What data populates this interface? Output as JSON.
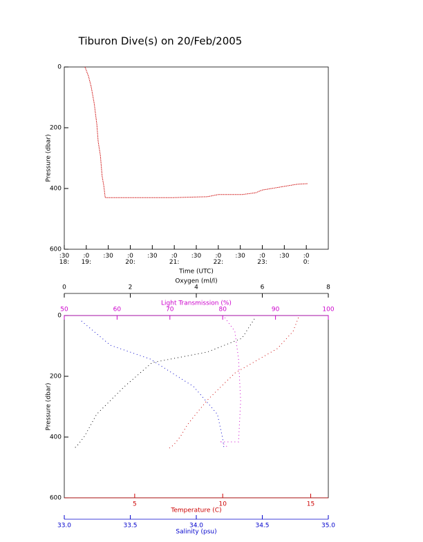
{
  "chart_data": [
    {
      "type": "line",
      "title": "Tiburon Dive(s) on 20/Feb/2005",
      "x_label": "Time (UTC)",
      "y_label": "Pressure (dbar)",
      "x": [
        18.97,
        19.05,
        19.11,
        19.18,
        19.24,
        19.27,
        19.32,
        19.36,
        19.4,
        19.43,
        21.0,
        21.75,
        22.0,
        22.54,
        22.85,
        23.0,
        23.5,
        23.79,
        24.03
      ],
      "series": [
        {
          "color": "#cc0000",
          "values": [
            0,
            30,
            64,
            120,
            189,
            245,
            291,
            359,
            393,
            430,
            430,
            427,
            420,
            420,
            414,
            405,
            393,
            386,
            384
          ]
        }
      ],
      "xlim": [
        18.5,
        24.5
      ],
      "xticks": [
        {
          "value": 18.5,
          "label": ":30\n18:"
        },
        {
          "value": 19,
          "label": ":0\n19:"
        },
        {
          "value": 19.5,
          "label": ":30"
        },
        {
          "value": 20,
          "label": ":0\n20:"
        },
        {
          "value": 20.5,
          "label": ":30"
        },
        {
          "value": 21,
          "label": ":0\n21:"
        },
        {
          "value": 21.5,
          "label": ":30"
        },
        {
          "value": 22,
          "label": ":0\n22:"
        },
        {
          "value": 22.5,
          "label": ":30"
        },
        {
          "value": 23,
          "label": ":0\n23:"
        },
        {
          "value": 23.5,
          "label": ":30"
        },
        {
          "value": 24,
          "label": ":0\n0:"
        }
      ],
      "ylim": [
        0,
        600
      ],
      "yticks": [
        0,
        200,
        400,
        600
      ],
      "y_reversed": true
    },
    {
      "type": "profile",
      "y_label": "Pressure (dbar)",
      "ylim": [
        0,
        600
      ],
      "yticks": [
        0,
        200,
        400,
        600
      ],
      "y_reversed": true,
      "x_axes": [
        {
          "label": "Oxygen (ml/l)",
          "color": "#000000",
          "position": "top",
          "lim": [
            0,
            8
          ],
          "ticks": [
            0,
            2,
            4,
            6,
            8
          ]
        },
        {
          "label": "Light Transmission (%)",
          "color": "#cc00cc",
          "position": "top",
          "lim": [
            50,
            100
          ],
          "ticks": [
            50,
            60,
            70,
            80,
            90,
            100
          ]
        },
        {
          "label": "Temperature (C)",
          "color": "#cc0000",
          "position": "bottom",
          "lim": [
            1,
            16
          ],
          "ticks": [
            5,
            10,
            15
          ]
        },
        {
          "label": "Salinity (psu)",
          "color": "#0000cc",
          "position": "bottom",
          "lim": [
            33,
            35
          ],
          "ticks": [
            {
              "value": 33,
              "label": "33.0"
            },
            33.5,
            {
              "value": 34,
              "label": "34.0"
            },
            34.5,
            {
              "value": 35,
              "label": "35.0"
            }
          ]
        }
      ],
      "series": [
        {
          "x_axis": 0,
          "color": "#000000",
          "x": [
            5.76,
            5.38,
            4.34,
            2.66,
            1.82,
            0.98,
            0.61,
            0.4,
            0.29
          ],
          "values": [
            11,
            75,
            120,
            155,
            234,
            325,
            398,
            427,
            439
          ]
        },
        {
          "x_axis": 1,
          "color": "#cc00cc",
          "x": [
            80.4,
            82.3,
            83.0,
            83.4,
            83.0,
            79.7,
            81.0
          ],
          "values": [
            7,
            52,
            143,
            280,
            416,
            416,
            434
          ]
        },
        {
          "x_axis": 2,
          "color": "#cc0000",
          "x": [
            14.3,
            14.0,
            13.1,
            10.7,
            9.1,
            8.0,
            7.6,
            7.2,
            6.9
          ],
          "values": [
            7,
            52,
            109,
            189,
            280,
            359,
            398,
            427,
            439
          ]
        },
        {
          "x_axis": 3,
          "color": "#0000cc",
          "x": [
            33.13,
            33.35,
            33.65,
            33.98,
            34.16,
            34.2,
            34.21
          ],
          "values": [
            18,
            98,
            143,
            234,
            325,
            405,
            439
          ]
        }
      ]
    }
  ]
}
